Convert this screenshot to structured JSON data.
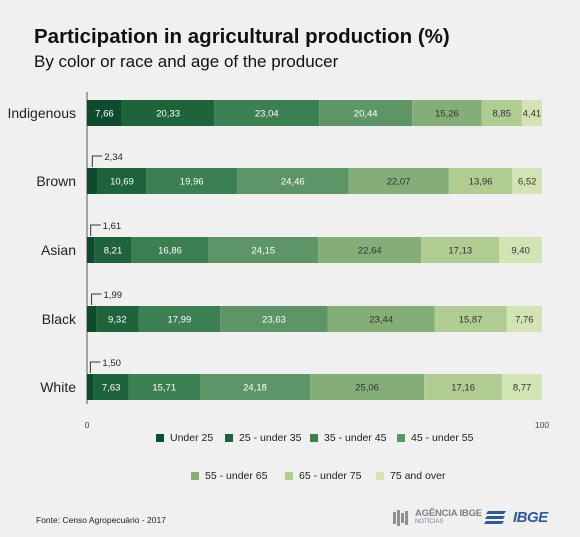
{
  "chart_data": {
    "type": "bar",
    "orientation": "horizontal",
    "stacked": true,
    "title": "Participation in agricultural production (%)",
    "subtitle": "By color or race and age of the producer",
    "categories": [
      "Indigenous",
      "Brown",
      "Asian",
      "Black",
      "White"
    ],
    "series": [
      {
        "name": "Under 25",
        "color": "#0d4a2e",
        "values": [
          7.66,
          2.34,
          1.61,
          1.99,
          1.5
        ],
        "labels": [
          "7,66",
          "2,34",
          "1,61",
          "1,99",
          "1,50"
        ]
      },
      {
        "name": "25 - under 35",
        "color": "#1f633c",
        "values": [
          20.33,
          10.69,
          8.21,
          9.32,
          7.63
        ],
        "labels": [
          "20,33",
          "10,69",
          "8,21",
          "9,32",
          "7,63"
        ]
      },
      {
        "name": "35 - under 45",
        "color": "#3b7f52",
        "values": [
          23.04,
          19.96,
          16.86,
          17.99,
          15.71
        ],
        "labels": [
          "23,04",
          "19,96",
          "16,86",
          "17,99",
          "15,71"
        ]
      },
      {
        "name": "45 - under 55",
        "color": "#5d9566",
        "values": [
          20.44,
          24.46,
          24.15,
          23.63,
          24.18
        ],
        "labels": [
          "20,44",
          "24,46",
          "24,15",
          "23,63",
          "24,18"
        ]
      },
      {
        "name": "55 - under 65",
        "color": "#85ad77",
        "values": [
          15.26,
          22.07,
          22.64,
          23.44,
          25.06
        ],
        "labels": [
          "15,26",
          "22,07",
          "22,64",
          "23,44",
          "25,06"
        ]
      },
      {
        "name": "65 - under 75",
        "color": "#b0cc93",
        "values": [
          8.85,
          13.96,
          17.13,
          15.87,
          17.16
        ],
        "labels": [
          "8,85",
          "13,96",
          "17,13",
          "15,87",
          "17,16"
        ]
      },
      {
        "name": "75 and over",
        "color": "#d3e4b4",
        "values": [
          4.41,
          6.52,
          9.4,
          7.76,
          8.77
        ],
        "labels": [
          "4,41",
          "6,52",
          "9,40",
          "7,76",
          "8,77"
        ]
      }
    ],
    "xlim": [
      0,
      100
    ],
    "x_ticks": [
      "0",
      "100"
    ],
    "grid": false,
    "legend_position": "bottom"
  },
  "footer": {
    "source": "Fonte: Censo Agropecuário - 2017",
    "agencia_line1": "AGÊNCIA IBGE",
    "agencia_line2": "NOTÍCIAS",
    "ibge_logo": "IBGE"
  }
}
